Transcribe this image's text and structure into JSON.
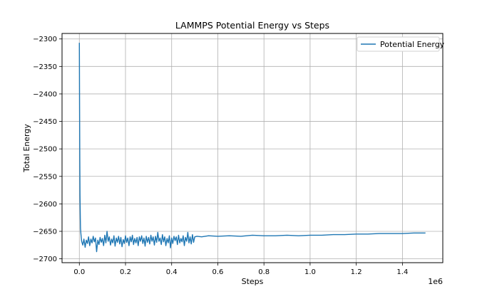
{
  "chart_data": {
    "type": "line",
    "title": "LAMMPS Potential Energy vs Steps",
    "xlabel": "Steps",
    "ylabel": "Total Energy",
    "x_offset_text": "1e6",
    "x_tick_labels": [
      "0.0",
      "0.2",
      "0.4",
      "0.6",
      "0.8",
      "1.0",
      "1.2",
      "1.4"
    ],
    "y_tick_labels": [
      "−2300",
      "−2350",
      "−2400",
      "−2450",
      "−2500",
      "−2550",
      "−2600",
      "−2650",
      "−2700"
    ],
    "x_ticks": [
      0,
      200000,
      400000,
      600000,
      800000,
      1000000,
      1200000,
      1400000
    ],
    "y_ticks": [
      -2300,
      -2350,
      -2400,
      -2450,
      -2500,
      -2550,
      -2600,
      -2650,
      -2700
    ],
    "xlim": [
      -75000,
      1575000
    ],
    "ylim": [
      -2707,
      -2290
    ],
    "grid": true,
    "legend_position": "top-right",
    "series": [
      {
        "name": "Potential Energy",
        "color": "#1f77b4",
        "points": [
          [
            0,
            -2307
          ],
          [
            1000,
            -2420
          ],
          [
            2000,
            -2520
          ],
          [
            3000,
            -2585
          ],
          [
            4000,
            -2625
          ],
          [
            5000,
            -2645
          ],
          [
            7000,
            -2655
          ],
          [
            10000,
            -2668
          ],
          [
            15000,
            -2675
          ],
          [
            20000,
            -2664
          ],
          [
            25000,
            -2679
          ],
          [
            30000,
            -2666
          ],
          [
            35000,
            -2672
          ],
          [
            40000,
            -2660
          ],
          [
            45000,
            -2676
          ],
          [
            50000,
            -2664
          ],
          [
            55000,
            -2671
          ],
          [
            60000,
            -2659
          ],
          [
            65000,
            -2669
          ],
          [
            70000,
            -2662
          ],
          [
            75000,
            -2687
          ],
          [
            80000,
            -2666
          ],
          [
            85000,
            -2674
          ],
          [
            90000,
            -2661
          ],
          [
            95000,
            -2670
          ],
          [
            100000,
            -2663
          ],
          [
            105000,
            -2676
          ],
          [
            110000,
            -2657
          ],
          [
            115000,
            -2671
          ],
          [
            120000,
            -2650
          ],
          [
            125000,
            -2668
          ],
          [
            130000,
            -2660
          ],
          [
            135000,
            -2675
          ],
          [
            140000,
            -2664
          ],
          [
            145000,
            -2671
          ],
          [
            150000,
            -2658
          ],
          [
            155000,
            -2677
          ],
          [
            160000,
            -2662
          ],
          [
            165000,
            -2670
          ],
          [
            170000,
            -2659
          ],
          [
            175000,
            -2673
          ],
          [
            180000,
            -2661
          ],
          [
            185000,
            -2678
          ],
          [
            190000,
            -2665
          ],
          [
            195000,
            -2672
          ],
          [
            200000,
            -2658
          ],
          [
            205000,
            -2670
          ],
          [
            210000,
            -2662
          ],
          [
            215000,
            -2676
          ],
          [
            220000,
            -2660
          ],
          [
            225000,
            -2669
          ],
          [
            230000,
            -2657
          ],
          [
            235000,
            -2674
          ],
          [
            240000,
            -2663
          ],
          [
            245000,
            -2671
          ],
          [
            250000,
            -2661
          ],
          [
            255000,
            -2676
          ],
          [
            260000,
            -2660
          ],
          [
            265000,
            -2668
          ],
          [
            270000,
            -2658
          ],
          [
            275000,
            -2672
          ],
          [
            280000,
            -2662
          ],
          [
            285000,
            -2677
          ],
          [
            290000,
            -2659
          ],
          [
            295000,
            -2670
          ],
          [
            300000,
            -2661
          ],
          [
            305000,
            -2673
          ],
          [
            310000,
            -2657
          ],
          [
            315000,
            -2668
          ],
          [
            320000,
            -2660
          ],
          [
            325000,
            -2675
          ],
          [
            330000,
            -2659
          ],
          [
            335000,
            -2670
          ],
          [
            340000,
            -2652
          ],
          [
            345000,
            -2668
          ],
          [
            350000,
            -2662
          ],
          [
            355000,
            -2674
          ],
          [
            360000,
            -2656
          ],
          [
            365000,
            -2669
          ],
          [
            370000,
            -2660
          ],
          [
            375000,
            -2676
          ],
          [
            380000,
            -2663
          ],
          [
            385000,
            -2671
          ],
          [
            390000,
            -2658
          ],
          [
            395000,
            -2680
          ],
          [
            400000,
            -2662
          ],
          [
            405000,
            -2672
          ],
          [
            410000,
            -2659
          ],
          [
            415000,
            -2667
          ],
          [
            420000,
            -2660
          ],
          [
            425000,
            -2674
          ],
          [
            430000,
            -2657
          ],
          [
            435000,
            -2671
          ],
          [
            440000,
            -2663
          ],
          [
            445000,
            -2669
          ],
          [
            450000,
            -2658
          ],
          [
            455000,
            -2676
          ],
          [
            460000,
            -2661
          ],
          [
            465000,
            -2668
          ],
          [
            470000,
            -2652
          ],
          [
            475000,
            -2671
          ],
          [
            480000,
            -2660
          ],
          [
            485000,
            -2673
          ],
          [
            490000,
            -2656
          ],
          [
            495000,
            -2670
          ],
          [
            500000,
            -2660
          ],
          [
            510000,
            -2659
          ],
          [
            530000,
            -2660
          ],
          [
            560000,
            -2658
          ],
          [
            600000,
            -2659
          ],
          [
            650000,
            -2658
          ],
          [
            700000,
            -2659
          ],
          [
            750000,
            -2657
          ],
          [
            800000,
            -2658
          ],
          [
            850000,
            -2658
          ],
          [
            900000,
            -2657
          ],
          [
            950000,
            -2658
          ],
          [
            1000000,
            -2657
          ],
          [
            1050000,
            -2657
          ],
          [
            1100000,
            -2656
          ],
          [
            1150000,
            -2656
          ],
          [
            1200000,
            -2655
          ],
          [
            1250000,
            -2655
          ],
          [
            1300000,
            -2654
          ],
          [
            1350000,
            -2654
          ],
          [
            1400000,
            -2654
          ],
          [
            1450000,
            -2653
          ],
          [
            1500000,
            -2653
          ]
        ]
      }
    ]
  }
}
